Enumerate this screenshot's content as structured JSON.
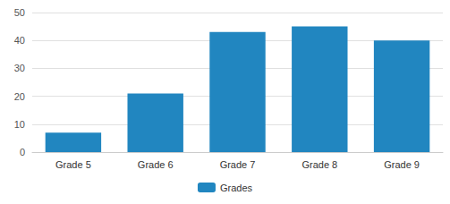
{
  "chart_data": {
    "type": "bar",
    "categories": [
      "Grade 5",
      "Grade 6",
      "Grade 7",
      "Grade 8",
      "Grade 9"
    ],
    "series": [
      {
        "name": "Grades",
        "color": "#2186c0",
        "values": [
          7,
          21,
          43,
          45,
          40
        ]
      }
    ],
    "ylim": [
      0,
      50
    ],
    "yticks": [
      0,
      10,
      20,
      30,
      40,
      50
    ],
    "grid": true,
    "legend": "bottom"
  }
}
